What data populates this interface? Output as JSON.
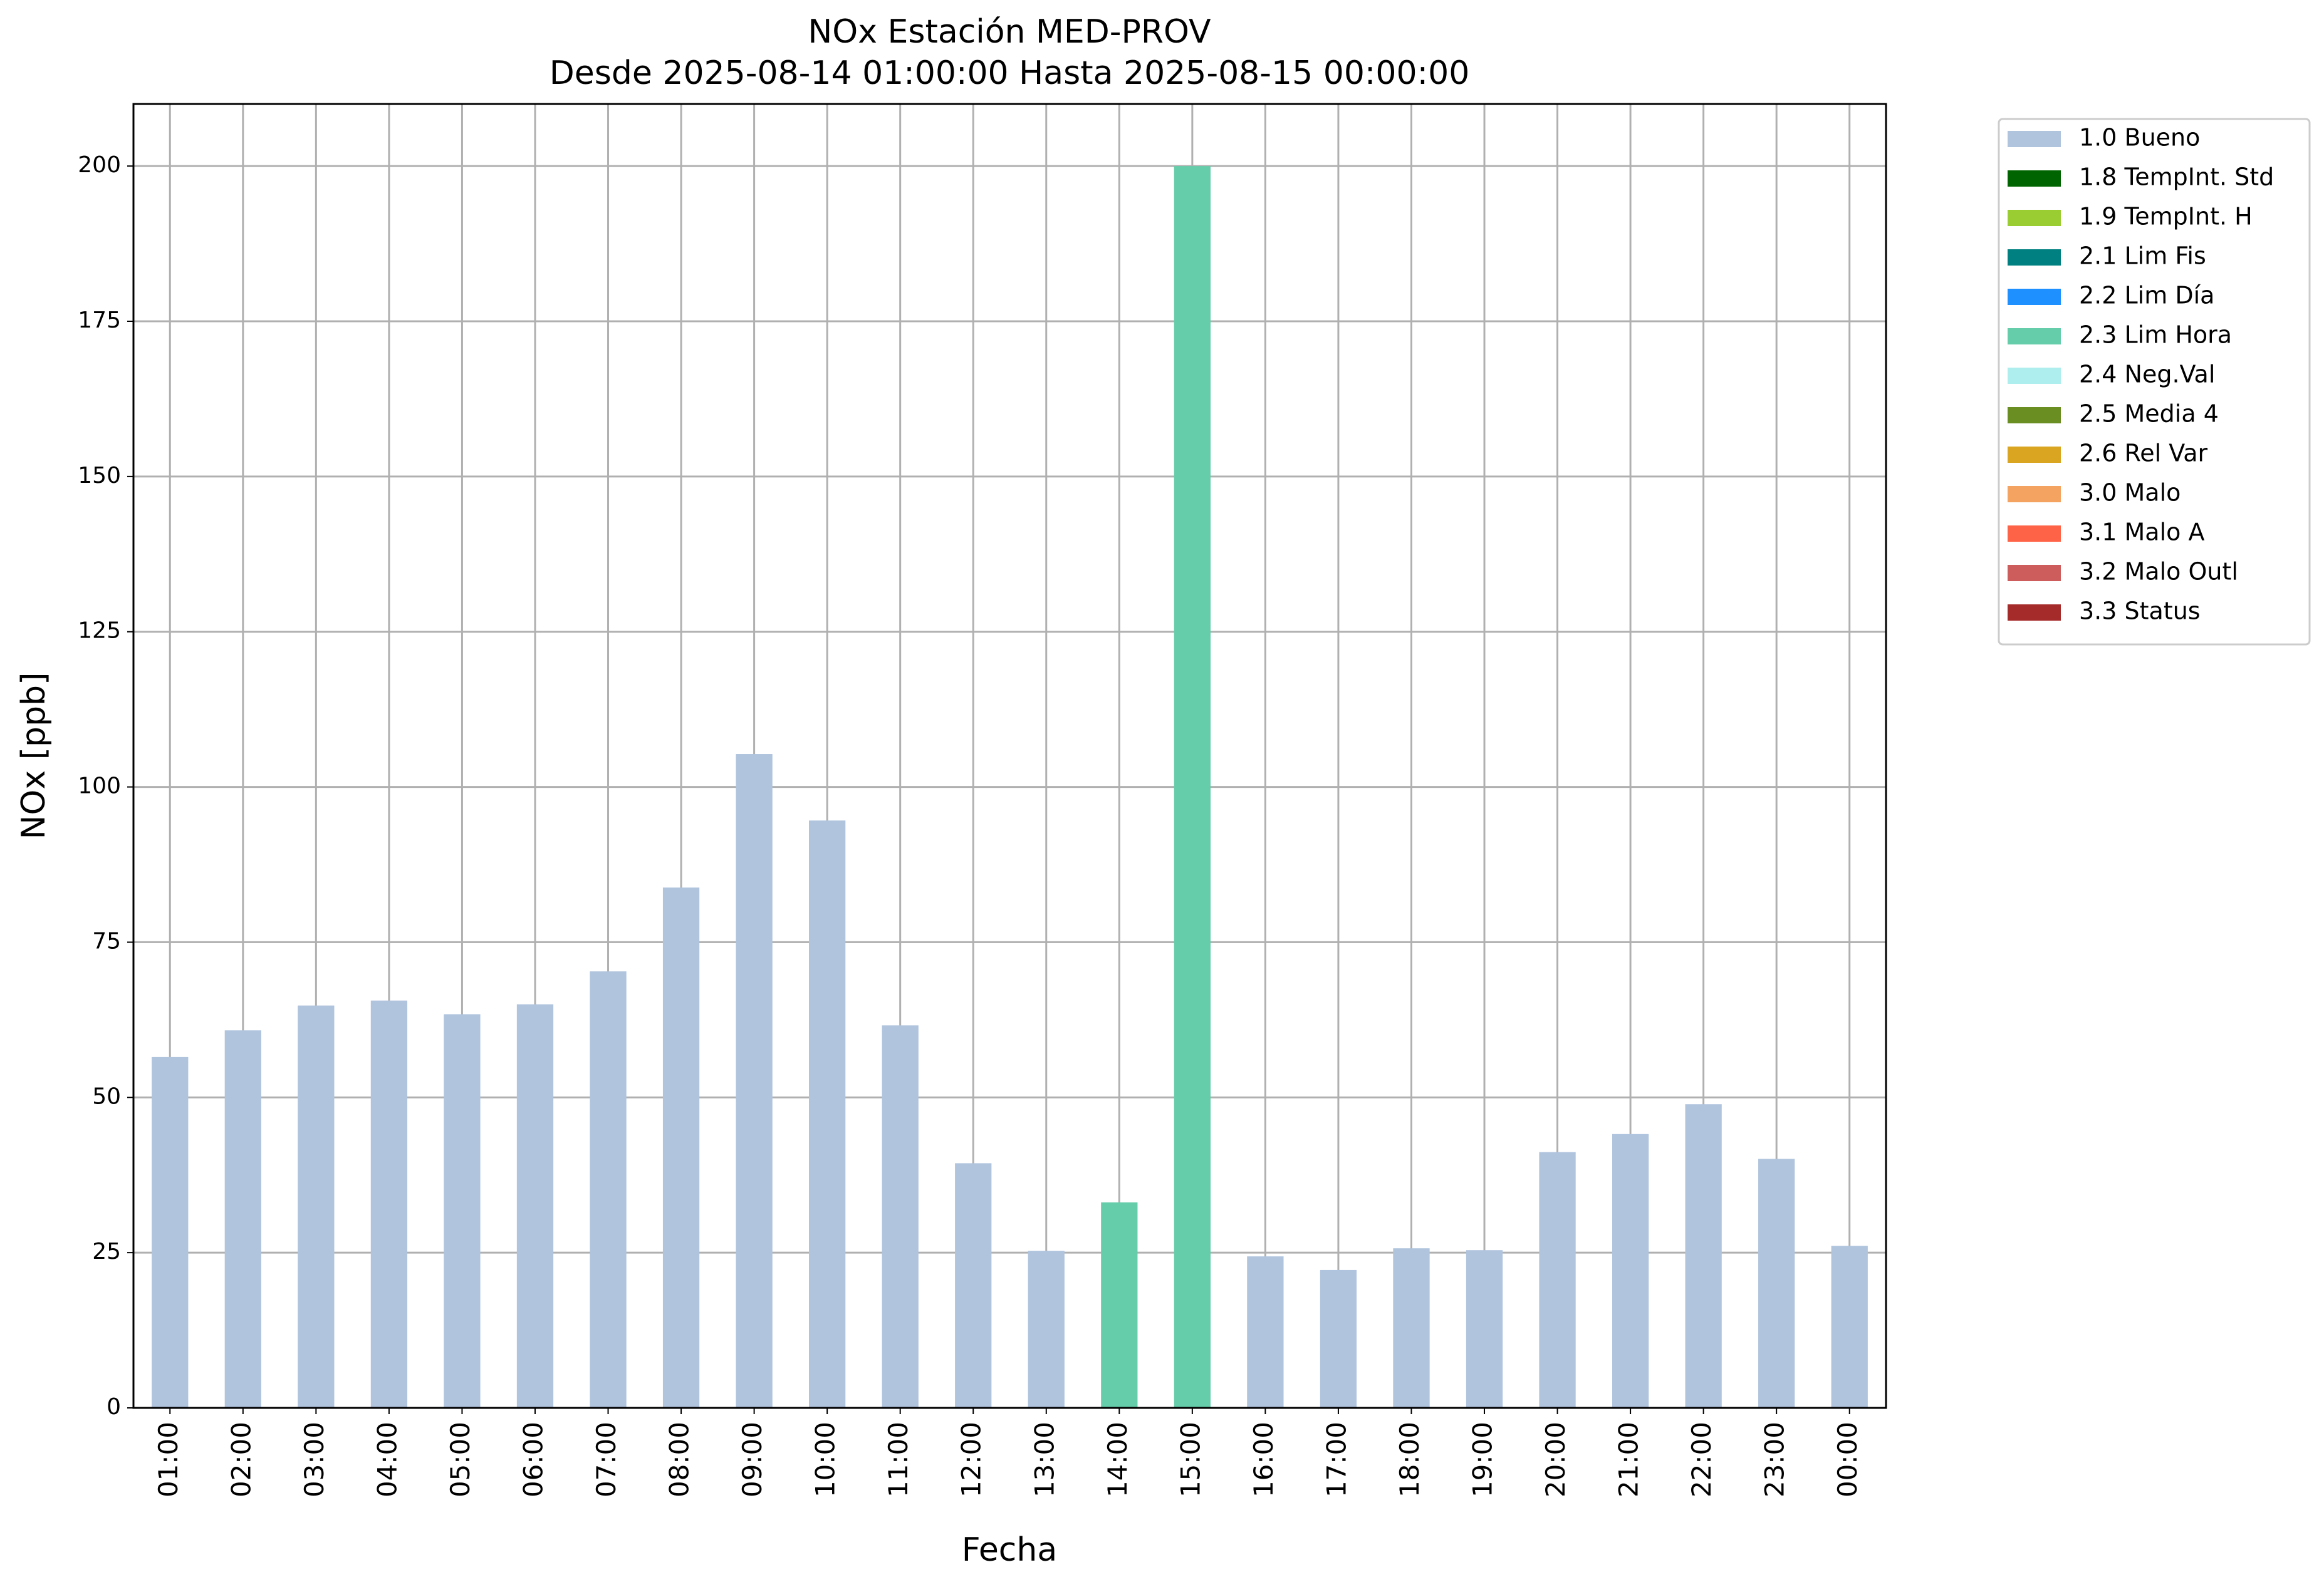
{
  "chart_data": {
    "type": "stacked_bar",
    "title": "NOx Estación MED-PROV",
    "subtitle": "Desde 2025-08-14 01:00:00 Hasta 2025-08-15 00:00:00",
    "x_label": "Fecha",
    "y_label": "NOx [ppb]",
    "categories": [
      "01:00",
      "02:00",
      "03:00",
      "04:00",
      "05:00",
      "06:00",
      "07:00",
      "08:00",
      "09:00",
      "10:00",
      "11:00",
      "12:00",
      "13:00",
      "14:00",
      "15:00",
      "16:00",
      "17:00",
      "18:00",
      "19:00",
      "20:00",
      "21:00",
      "22:00",
      "23:00",
      "00:00"
    ],
    "series": [
      {
        "name": "1.0 Bueno",
        "color": "#b0c4de",
        "values": [
          56.5,
          60.8,
          64.8,
          65.6,
          63.4,
          65.0,
          70.3,
          83.8,
          105.3,
          94.6,
          61.6,
          39.4,
          25.3,
          null,
          null,
          24.4,
          22.2,
          25.7,
          25.4,
          41.2,
          44.1,
          48.9,
          40.1,
          26.1
        ]
      },
      {
        "name": "1.8 TempInt. Std",
        "color": "#006400",
        "values": [
          null,
          null,
          null,
          null,
          null,
          null,
          null,
          null,
          null,
          null,
          null,
          null,
          null,
          null,
          null,
          null,
          null,
          null,
          null,
          null,
          null,
          null,
          null,
          null
        ]
      },
      {
        "name": "1.9 TempInt. H",
        "color": "#9acd32",
        "values": [
          null,
          null,
          null,
          null,
          null,
          null,
          null,
          null,
          null,
          null,
          null,
          null,
          null,
          null,
          null,
          null,
          null,
          null,
          null,
          null,
          null,
          null,
          null,
          null
        ]
      },
      {
        "name": "2.1 Lim Fis",
        "color": "#008080",
        "values": [
          null,
          null,
          null,
          null,
          null,
          null,
          null,
          null,
          null,
          null,
          null,
          null,
          null,
          null,
          null,
          null,
          null,
          null,
          null,
          null,
          null,
          null,
          null,
          null
        ]
      },
      {
        "name": "2.2 Lim Día",
        "color": "#1e90ff",
        "values": [
          null,
          null,
          null,
          null,
          null,
          null,
          null,
          null,
          null,
          null,
          null,
          null,
          null,
          null,
          null,
          null,
          null,
          null,
          null,
          null,
          null,
          null,
          null,
          null
        ]
      },
      {
        "name": "2.3 Lim Hora",
        "color": "#66cdaa",
        "values": [
          null,
          null,
          null,
          null,
          null,
          null,
          null,
          null,
          null,
          null,
          null,
          null,
          null,
          33.1,
          200.0,
          null,
          null,
          null,
          null,
          null,
          null,
          null,
          null,
          null
        ]
      },
      {
        "name": "2.4 Neg.Val",
        "color": "#afeeee",
        "values": [
          null,
          null,
          null,
          null,
          null,
          null,
          null,
          null,
          null,
          null,
          null,
          null,
          null,
          null,
          null,
          null,
          null,
          null,
          null,
          null,
          null,
          null,
          null,
          null
        ]
      },
      {
        "name": "2.5 Media 4",
        "color": "#6b8e23",
        "values": [
          null,
          null,
          null,
          null,
          null,
          null,
          null,
          null,
          null,
          null,
          null,
          null,
          null,
          null,
          null,
          null,
          null,
          null,
          null,
          null,
          null,
          null,
          null,
          null
        ]
      },
      {
        "name": "2.6 Rel Var",
        "color": "#daa520",
        "values": [
          null,
          null,
          null,
          null,
          null,
          null,
          null,
          null,
          null,
          null,
          null,
          null,
          null,
          null,
          null,
          null,
          null,
          null,
          null,
          null,
          null,
          null,
          null,
          null
        ]
      },
      {
        "name": "3.0 Malo",
        "color": "#f4a460",
        "values": [
          null,
          null,
          null,
          null,
          null,
          null,
          null,
          null,
          null,
          null,
          null,
          null,
          null,
          null,
          null,
          null,
          null,
          null,
          null,
          null,
          null,
          null,
          null,
          null
        ]
      },
      {
        "name": "3.1 Malo A",
        "color": "#ff6347",
        "values": [
          null,
          null,
          null,
          null,
          null,
          null,
          null,
          null,
          null,
          null,
          null,
          null,
          null,
          null,
          null,
          null,
          null,
          null,
          null,
          null,
          null,
          null,
          null,
          null
        ]
      },
      {
        "name": "3.2 Malo Outl",
        "color": "#cd5c5c",
        "values": [
          null,
          null,
          null,
          null,
          null,
          null,
          null,
          null,
          null,
          null,
          null,
          null,
          null,
          null,
          null,
          null,
          null,
          null,
          null,
          null,
          null,
          null,
          null,
          null
        ]
      },
      {
        "name": "3.3 Status",
        "color": "#a52a2a",
        "values": [
          null,
          null,
          null,
          null,
          null,
          null,
          null,
          null,
          null,
          null,
          null,
          null,
          null,
          null,
          null,
          null,
          null,
          null,
          null,
          null,
          null,
          null,
          null,
          null
        ]
      }
    ],
    "ylim": [
      0,
      210
    ],
    "yticks": [
      0,
      25,
      50,
      75,
      100,
      125,
      150,
      175,
      200
    ],
    "grid": true,
    "legend": "right"
  }
}
